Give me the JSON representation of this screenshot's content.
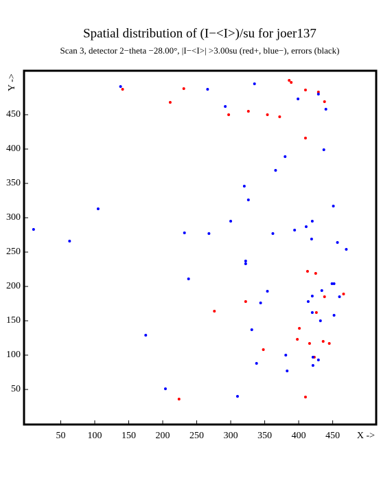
{
  "chart_data": {
    "type": "scatter",
    "title": "Spatial distribution of (I−<I>)/su for joer137",
    "subtitle": "Scan  3, detector 2−theta −28.00°, |I−<I>| >3.00su (red+, blue−), errors (black)",
    "x_label": "X ->",
    "y_label": "Y ->",
    "xlim": [
      -4,
      514
    ],
    "ylim": [
      -1,
      514
    ],
    "xticks": [
      50,
      100,
      150,
      200,
      250,
      300,
      350,
      400,
      450
    ],
    "yticks": [
      50,
      100,
      150,
      200,
      250,
      300,
      350,
      400,
      450
    ],
    "series": [
      {
        "color": "#ff0000",
        "x": [
          141,
          231,
          211,
          297,
          326,
          354,
          372,
          386,
          389,
          410,
          429,
          438,
          410,
          413,
          425,
          322,
          276,
          438,
          466,
          426,
          401,
          398,
          416,
          436,
          445,
          348,
          423,
          410,
          224
        ],
        "values": [
          487,
          488,
          468,
          450,
          455,
          450,
          447,
          500,
          497,
          486,
          483,
          469,
          416,
          222,
          219,
          178,
          164,
          185,
          189,
          162,
          139,
          123,
          117,
          120,
          117,
          108,
          97,
          39,
          36
        ]
      },
      {
        "color": "#0000ff",
        "x": [
          138,
          266,
          335,
          292,
          399,
          429,
          440,
          437,
          380,
          366,
          320,
          326,
          451,
          105,
          300,
          420,
          411,
          394,
          10,
          232,
          268,
          362,
          419,
          457,
          470,
          63,
          322,
          322,
          238,
          449,
          452,
          434,
          354,
          420,
          460,
          414,
          344,
          420,
          452,
          432,
          331,
          175,
          381,
          421,
          429,
          338,
          421,
          383,
          204,
          310
        ],
        "values": [
          491,
          487,
          495,
          462,
          473,
          480,
          458,
          399,
          389,
          369,
          346,
          326,
          317,
          313,
          295,
          295,
          287,
          282,
          283,
          278,
          277,
          277,
          269,
          264,
          254,
          266,
          237,
          233,
          211,
          204,
          204,
          194,
          193,
          186,
          185,
          178,
          176,
          162,
          158,
          150,
          137,
          129,
          100,
          97,
          93,
          88,
          85,
          77,
          51,
          40
        ]
      }
    ]
  }
}
